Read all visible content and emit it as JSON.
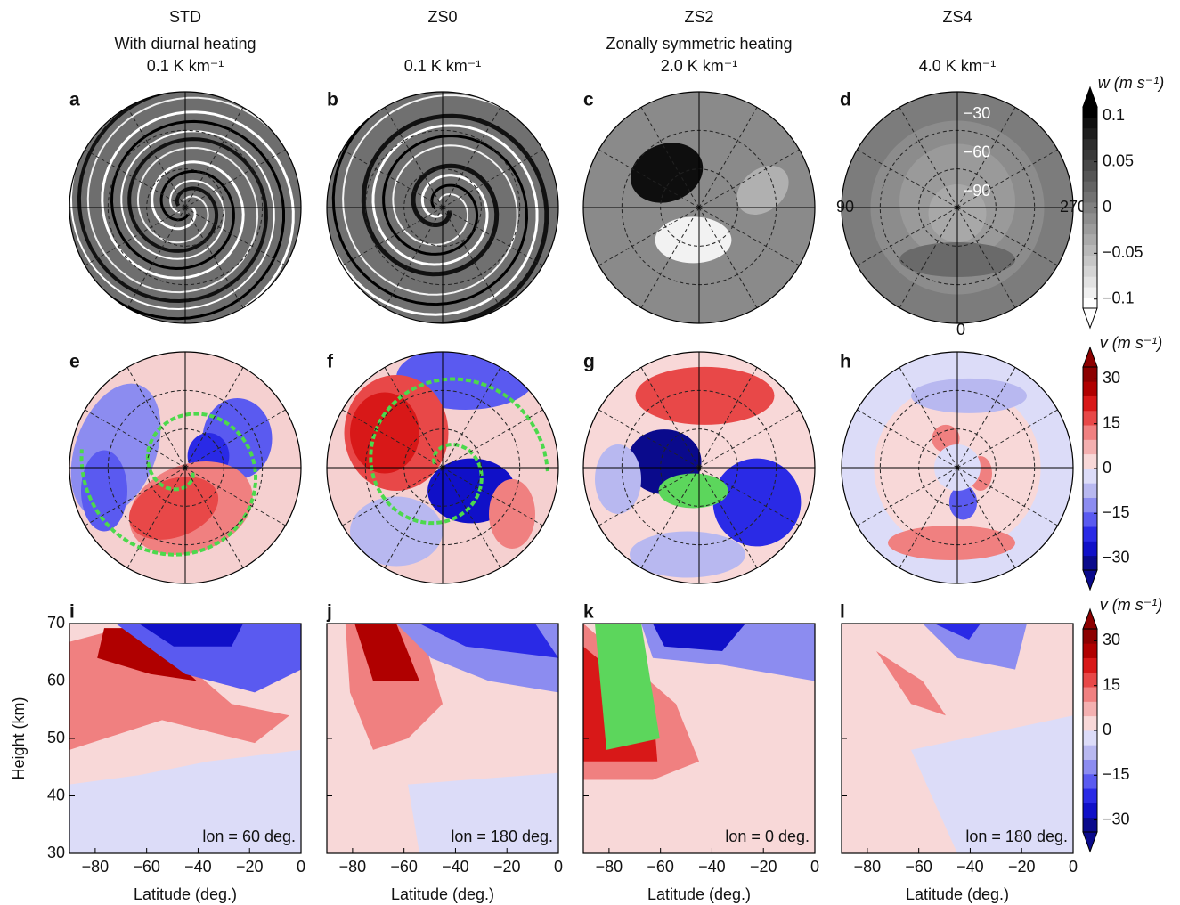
{
  "columns": [
    {
      "title": "STD",
      "subtitle": "With diurnal heating",
      "heating": "0.1 K km⁻¹"
    },
    {
      "title": "ZS0",
      "heating": "0.1 K km⁻¹"
    },
    {
      "title": "ZS2",
      "subtitle": "Zonally symmetric heating",
      "heating": "2.0 K km⁻¹"
    },
    {
      "title": "ZS4",
      "heating": "4.0 K km⁻¹"
    }
  ],
  "panel_labels": [
    "a",
    "b",
    "c",
    "d",
    "e",
    "f",
    "g",
    "h",
    "i",
    "j",
    "k",
    "l"
  ],
  "polar_labels": {
    "lat_ticks": [
      {
        "value": -30,
        "label": "−30"
      },
      {
        "value": -60,
        "label": "−60"
      },
      {
        "value": -90,
        "label": "−90"
      }
    ],
    "lon_ticks": [
      90,
      270,
      0
    ]
  },
  "colorbars": [
    {
      "label": "w (m s⁻¹)",
      "clim": [
        -0.11,
        0.11
      ],
      "ticks": [
        0.1,
        0.05,
        0,
        {
          "value": -0.05,
          "label": "−0.05"
        },
        {
          "value": -0.1,
          "label": "−0.1"
        }
      ],
      "colors": [
        "#ffffff",
        "#f0f0f0",
        "#e2e2e2",
        "#d4d4d4",
        "#c6c6c6",
        "#b8b8b8",
        "#aaaaaa",
        "#9c9c9c",
        "#8e8e8e",
        "#808080",
        "#727272",
        "#646464",
        "#565656",
        "#484848",
        "#3a3a3a",
        "#2c2c2c",
        "#1e1e1e",
        "#101010",
        "#000000"
      ]
    },
    {
      "label": "v (m s⁻¹)",
      "clim": [
        -34,
        34
      ],
      "ticks": [
        30,
        15,
        0,
        {
          "value": -15,
          "label": "−15"
        },
        {
          "value": -30,
          "label": "−30"
        }
      ],
      "colors": [
        "#0a0a8c",
        "#1010c8",
        "#2a2ae6",
        "#5a5af0",
        "#8c8cf0",
        "#b8b8f0",
        "#dcdcf8",
        "#f8d8d8",
        "#f4b0b0",
        "#f08080",
        "#e84848",
        "#d81818",
        "#b00000",
        "#8c0000"
      ]
    },
    {
      "label": "v (m s⁻¹)",
      "clim": [
        -34,
        34
      ],
      "ticks": [
        30,
        15,
        0,
        {
          "value": -15,
          "label": "−15"
        },
        {
          "value": -30,
          "label": "−30"
        }
      ],
      "colors": [
        "#0a0a8c",
        "#1010c8",
        "#2a2ae6",
        "#5a5af0",
        "#8c8cf0",
        "#b8b8f0",
        "#dcdcf8",
        "#f8d8d8",
        "#f4b0b0",
        "#f08080",
        "#e84848",
        "#d81818",
        "#b00000",
        "#8c0000"
      ]
    }
  ],
  "chart_data": [
    {
      "type": "contour",
      "annotation": "lon = 60 deg.",
      "xlabel": "Latitude (deg.)",
      "ylabel": "Height (km)",
      "show_ytick_labels": true,
      "xlim": [
        -90,
        0
      ],
      "ylim": [
        30,
        70
      ],
      "xticks": [
        {
          "value": -80,
          "label": "−80"
        },
        {
          "value": -60,
          "label": "−60"
        },
        {
          "value": -40,
          "label": "−40"
        },
        {
          "value": -20,
          "label": "−20"
        },
        0
      ],
      "yticks": [
        30,
        40,
        50,
        60,
        70
      ]
    },
    {
      "type": "contour",
      "annotation": "lon = 180 deg.",
      "xlabel": "Latitude (deg.)",
      "show_ytick_labels": false,
      "xlim": [
        -90,
        0
      ],
      "ylim": [
        30,
        70
      ],
      "xticks": [
        {
          "value": -80,
          "label": "−80"
        },
        {
          "value": -60,
          "label": "−60"
        },
        {
          "value": -40,
          "label": "−40"
        },
        {
          "value": -20,
          "label": "−20"
        },
        0
      ],
      "yticks": [
        30,
        40,
        50,
        60,
        70
      ]
    },
    {
      "type": "contour",
      "annotation": "lon = 0 deg.",
      "xlabel": "Latitude (deg.)",
      "show_ytick_labels": false,
      "xlim": [
        -90,
        0
      ],
      "ylim": [
        30,
        70
      ],
      "xticks": [
        {
          "value": -80,
          "label": "−80"
        },
        {
          "value": -60,
          "label": "−60"
        },
        {
          "value": -40,
          "label": "−40"
        },
        {
          "value": -20,
          "label": "−20"
        },
        0
      ],
      "yticks": [
        30,
        40,
        50,
        60,
        70
      ]
    },
    {
      "type": "contour",
      "annotation": "lon = 180 deg.",
      "xlabel": "Latitude (deg.)",
      "show_ytick_labels": false,
      "xlim": [
        -90,
        0
      ],
      "ylim": [
        30,
        70
      ],
      "xticks": [
        {
          "value": -80,
          "label": "−80"
        },
        {
          "value": -60,
          "label": "−60"
        },
        {
          "value": -40,
          "label": "−40"
        },
        {
          "value": -20,
          "label": "−20"
        },
        0
      ],
      "yticks": [
        30,
        40,
        50,
        60,
        70
      ]
    }
  ]
}
